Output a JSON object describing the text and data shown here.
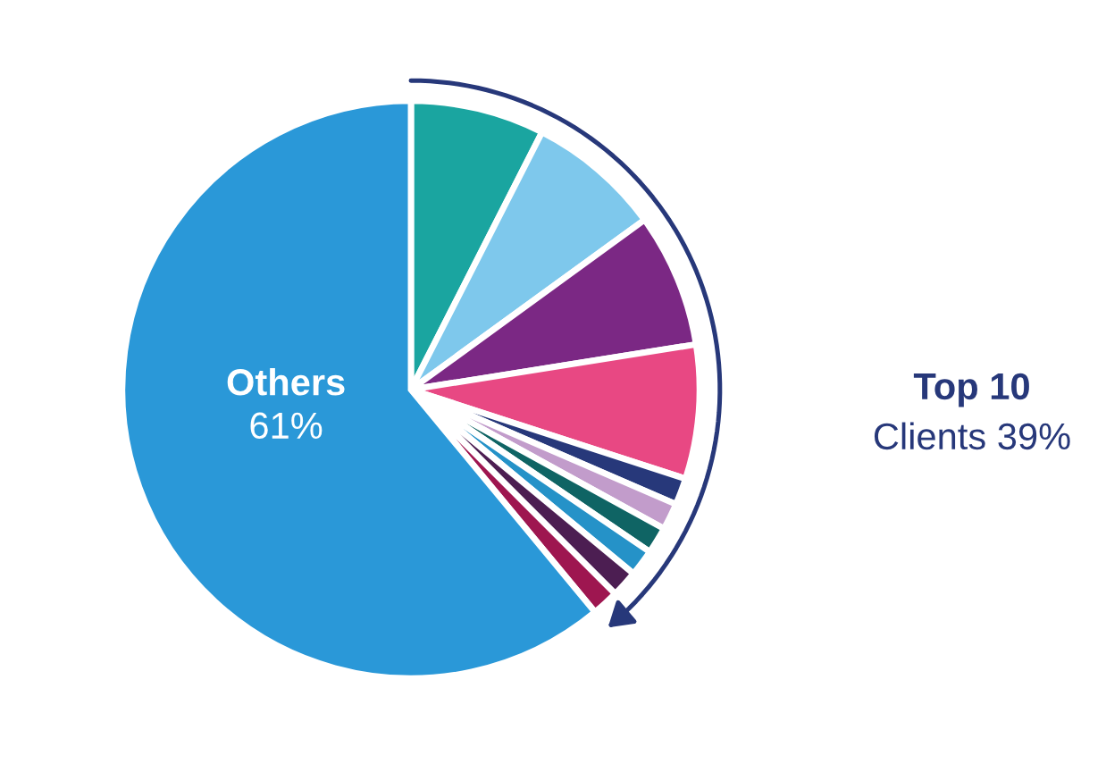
{
  "chart_data": {
    "type": "pie",
    "categories": [
      null,
      null,
      null,
      null,
      null,
      null,
      null,
      null,
      null,
      null,
      "Others"
    ],
    "values": [
      7.5,
      7.5,
      7.5,
      7.5,
      1.5,
      1.5,
      1.5,
      1.5,
      1.5,
      1.5,
      61
    ],
    "colors": [
      "#1aa5a0",
      "#7ec8ec",
      "#7b2884",
      "#e84883",
      "#27387a",
      "#c29ccb",
      "#0f6464",
      "#2592c8",
      "#4c1e52",
      "#9e1650",
      "#2a98d8"
    ],
    "value_labels": [
      null,
      null,
      null,
      null,
      null,
      null,
      null,
      null,
      null,
      null,
      "61%"
    ],
    "annotations": [
      "Top 10",
      "Clients 39%"
    ]
  }
}
